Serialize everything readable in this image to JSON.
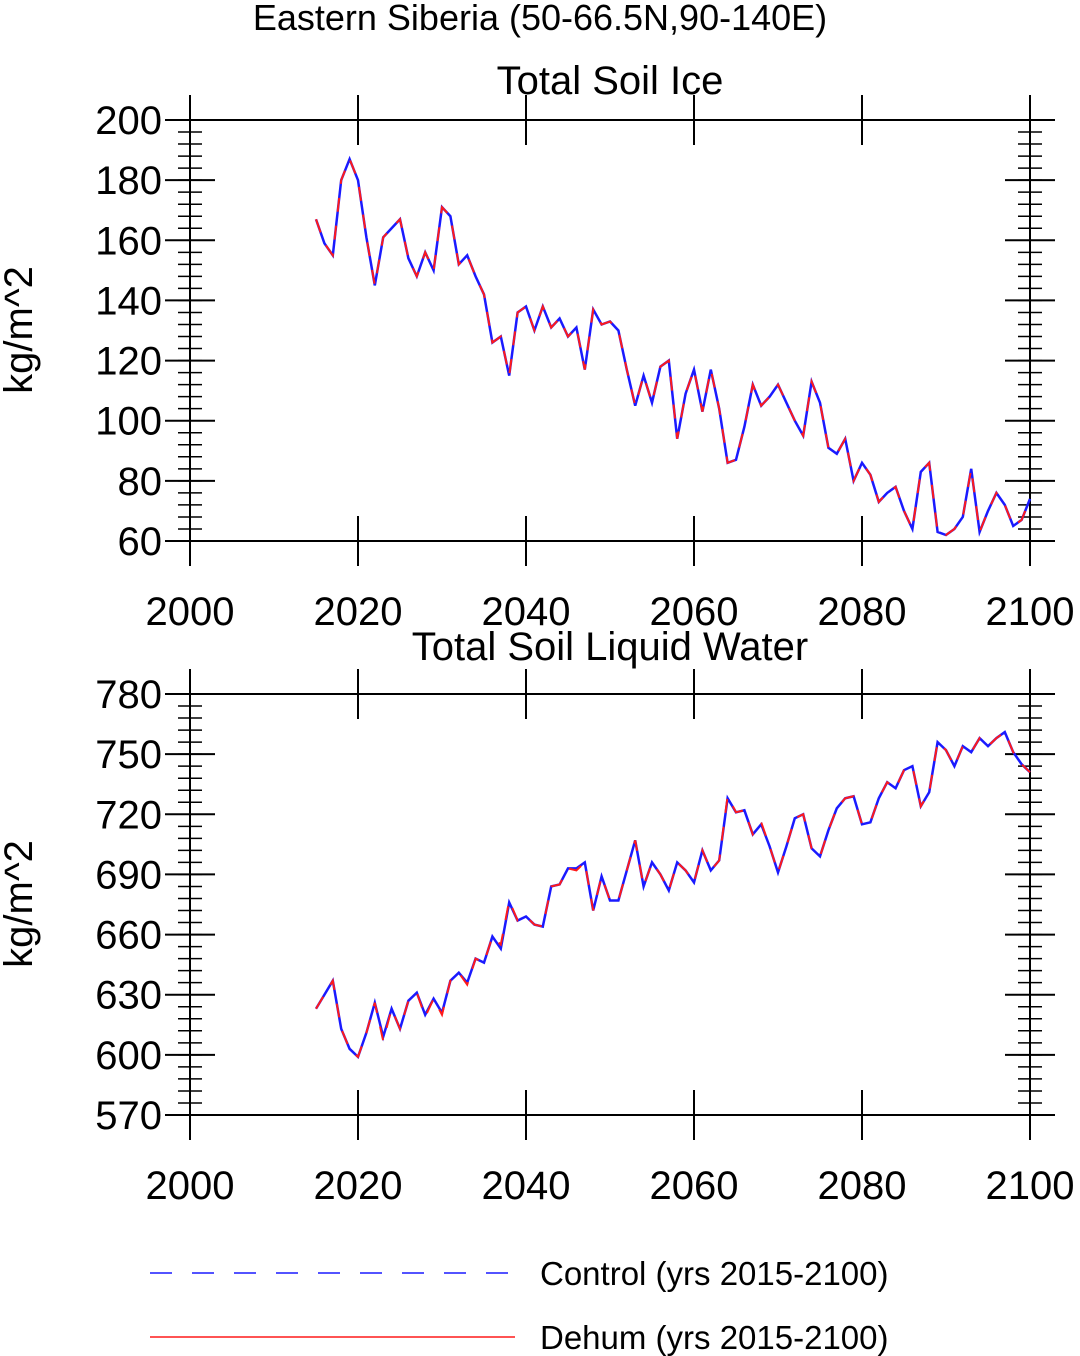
{
  "page_title": "Eastern Siberia (50-66.5N,90-140E)",
  "colors": {
    "control": "#1a1aff",
    "dehum": "#ff1a1a",
    "axis": "#000000"
  },
  "legend": [
    {
      "label": "Control (yrs 2015-2100)",
      "style": "dashed",
      "color": "#1a1aff"
    },
    {
      "label": "Dehum (yrs 2015-2100)",
      "style": "solid",
      "color": "#ff1a1a"
    }
  ],
  "chart_data": [
    {
      "type": "line",
      "title": "Total Soil Ice",
      "xlabel": "",
      "ylabel": "kg/m^2",
      "xlim": [
        2000,
        2100
      ],
      "ylim": [
        60,
        200
      ],
      "xticks": [
        2000,
        2020,
        2040,
        2060,
        2080,
        2100
      ],
      "yticks": [
        60,
        80,
        100,
        120,
        140,
        160,
        180,
        200
      ],
      "x_start": 2015,
      "series": [
        {
          "name": "Control (yrs 2015-2100)",
          "values": [
            167,
            159,
            155,
            180,
            187,
            180,
            161,
            145,
            161,
            164,
            167,
            154,
            148,
            156,
            150,
            171,
            168,
            152,
            155,
            148,
            142,
            126,
            128,
            115,
            136,
            138,
            130,
            138,
            131,
            134,
            128,
            131,
            117,
            137,
            132,
            133,
            130,
            117,
            105,
            115,
            106,
            118,
            120,
            94,
            109,
            117,
            103,
            117,
            104,
            86,
            87,
            98,
            112,
            105,
            108,
            112,
            106,
            100,
            95,
            113,
            106,
            91,
            89,
            94,
            80,
            86,
            82,
            73,
            76,
            78,
            70,
            64,
            83,
            86,
            63,
            62,
            64,
            68,
            84,
            63,
            70,
            76,
            72,
            65,
            67,
            74
          ]
        },
        {
          "name": "Dehum (yrs 2015-2100)",
          "values": [
            167,
            159,
            155,
            180,
            187,
            180,
            161,
            145,
            161,
            164,
            167,
            154,
            148,
            156,
            150,
            171,
            168,
            152,
            155,
            148,
            142,
            126,
            128,
            115,
            136,
            138,
            130,
            138,
            131,
            134,
            128,
            131,
            117,
            137,
            132,
            133,
            130,
            117,
            105,
            115,
            106,
            118,
            120,
            94,
            109,
            117,
            103,
            117,
            104,
            86,
            87,
            98,
            112,
            105,
            108,
            112,
            106,
            100,
            95,
            113,
            106,
            91,
            89,
            94,
            80,
            86,
            82,
            73,
            76,
            78,
            70,
            64,
            83,
            86,
            63,
            62,
            64,
            68,
            84,
            63,
            70,
            76,
            72,
            65,
            67,
            74
          ]
        }
      ]
    },
    {
      "type": "line",
      "title": "Total Soil Liquid Water",
      "xlabel": "",
      "ylabel": "kg/m^2",
      "xlim": [
        2000,
        2100
      ],
      "ylim": [
        570,
        780
      ],
      "xticks": [
        2000,
        2020,
        2040,
        2060,
        2080,
        2100
      ],
      "yticks": [
        570,
        600,
        630,
        660,
        690,
        720,
        750,
        780
      ],
      "x_start": 2015,
      "series": [
        {
          "name": "Control (yrs 2015-2100)",
          "values": [
            623,
            630,
            637,
            613,
            603,
            599,
            611,
            626,
            609,
            623,
            613,
            627,
            631,
            620,
            628,
            621,
            637,
            641,
            636,
            648,
            646,
            659,
            653,
            676,
            667,
            669,
            665,
            664,
            684,
            685,
            693,
            693,
            696,
            672,
            689,
            677,
            677,
            692,
            707,
            684,
            696,
            690,
            682,
            696,
            692,
            686,
            702,
            692,
            697,
            728,
            721,
            722,
            710,
            715,
            704,
            691,
            704,
            718,
            720,
            703,
            699,
            712,
            723,
            728,
            729,
            715,
            716,
            728,
            736,
            733,
            742,
            744,
            724,
            731,
            756,
            752,
            744,
            754,
            751,
            758,
            754,
            758,
            761,
            751,
            745,
            741
          ]
        },
        {
          "name": "Dehum (yrs 2015-2100)",
          "values": [
            623,
            630,
            637,
            613,
            603,
            599,
            611,
            626,
            607,
            623,
            613,
            627,
            631,
            619,
            628,
            620,
            637,
            641,
            635,
            648,
            646,
            659,
            655,
            677,
            667,
            669,
            665,
            664,
            684,
            685,
            693,
            692,
            696,
            672,
            689,
            677,
            677,
            692,
            707,
            684,
            696,
            690,
            682,
            696,
            692,
            686,
            702,
            692,
            697,
            729,
            721,
            722,
            710,
            716,
            704,
            691,
            704,
            718,
            720,
            703,
            699,
            712,
            723,
            728,
            729,
            715,
            716,
            728,
            736,
            733,
            742,
            744,
            724,
            731,
            756,
            752,
            744,
            754,
            751,
            758,
            754,
            758,
            761,
            751,
            745,
            741
          ]
        }
      ]
    }
  ]
}
